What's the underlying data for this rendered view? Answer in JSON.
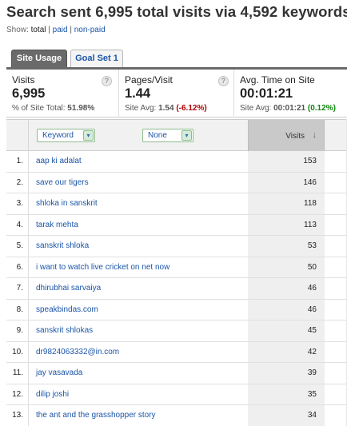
{
  "header": {
    "title": "Search sent 6,995 total visits via 4,592 keywords",
    "show_label": "Show:",
    "show_options": [
      "total",
      "paid",
      "non-paid"
    ],
    "separator": "|"
  },
  "tabs": [
    {
      "label": "Site Usage",
      "active": true
    },
    {
      "label": "Goal Set 1",
      "active": false
    }
  ],
  "metrics": {
    "visits": {
      "label": "Visits",
      "value": "6,995",
      "sub_prefix": "% of Site Total: ",
      "sub_value": "51.98%"
    },
    "pages_visit": {
      "label": "Pages/Visit",
      "value": "1.44",
      "sub_prefix": "Site Avg: ",
      "sub_value": "1.54",
      "delta": "(-6.12%)"
    },
    "time_on_site": {
      "label": "Avg. Time on Site",
      "value": "00:01:21",
      "sub_prefix": "Site Avg: ",
      "sub_value": "00:01:21",
      "delta": "(0.12%)"
    },
    "help_glyph": "?"
  },
  "table": {
    "primary_dimension": "Keyword",
    "secondary_dimension": "None",
    "dropdown_glyph": "▾",
    "metric_header": "Visits",
    "sort_glyph": "↓",
    "rows": [
      {
        "num": "1.",
        "keyword": "aap ki adalat",
        "visits": "153"
      },
      {
        "num": "2.",
        "keyword": "save our tigers",
        "visits": "146"
      },
      {
        "num": "3.",
        "keyword": "shloka in sanskrit",
        "visits": "118"
      },
      {
        "num": "4.",
        "keyword": "tarak mehta",
        "visits": "113"
      },
      {
        "num": "5.",
        "keyword": "sanskrit shloka",
        "visits": "53"
      },
      {
        "num": "6.",
        "keyword": "i want to watch live cricket on net now",
        "visits": "50"
      },
      {
        "num": "7.",
        "keyword": "dhirubhai sarvaiya",
        "visits": "46"
      },
      {
        "num": "8.",
        "keyword": "speakbindas.com",
        "visits": "46"
      },
      {
        "num": "9.",
        "keyword": "sanskrit shlokas",
        "visits": "45"
      },
      {
        "num": "10.",
        "keyword": "dr9824063332@in.com",
        "visits": "42"
      },
      {
        "num": "11.",
        "keyword": "jay vasavada",
        "visits": "39"
      },
      {
        "num": "12.",
        "keyword": "dilip joshi",
        "visits": "35"
      },
      {
        "num": "13.",
        "keyword": "the ant and the grasshopper story",
        "visits": "34"
      }
    ]
  },
  "colors": {
    "link": "#1a55a8",
    "negative": "#b00000",
    "positive": "#118811",
    "active_tab": "#6a6a6a"
  }
}
